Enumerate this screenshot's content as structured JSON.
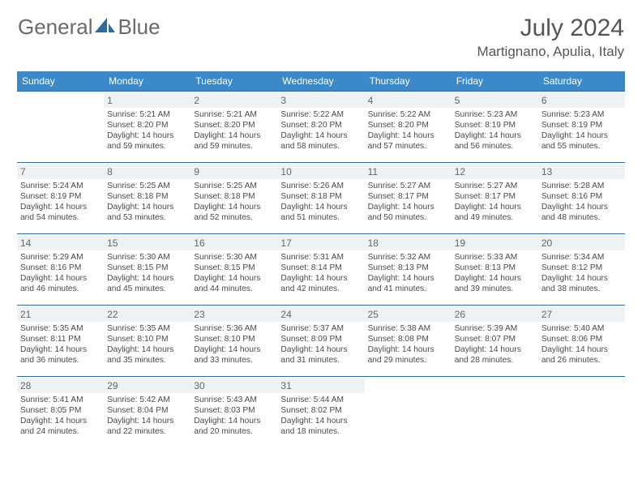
{
  "brand": {
    "part1": "General",
    "part2": "Blue"
  },
  "title": "July 2024",
  "location": "Martignano, Apulia, Italy",
  "colors": {
    "header_bg": "#3b89c9",
    "header_text": "#ffffff",
    "row_border": "#2f6aa0",
    "daynum_bg": "#eef2f5",
    "text": "#4a4a4a",
    "logo_accent": "#2f6aa0"
  },
  "weekdays": [
    "Sunday",
    "Monday",
    "Tuesday",
    "Wednesday",
    "Thursday",
    "Friday",
    "Saturday"
  ],
  "start_weekday_index": 1,
  "days": [
    {
      "n": 1,
      "sunrise": "5:21 AM",
      "sunset": "8:20 PM",
      "daylight": "14 hours and 59 minutes."
    },
    {
      "n": 2,
      "sunrise": "5:21 AM",
      "sunset": "8:20 PM",
      "daylight": "14 hours and 59 minutes."
    },
    {
      "n": 3,
      "sunrise": "5:22 AM",
      "sunset": "8:20 PM",
      "daylight": "14 hours and 58 minutes."
    },
    {
      "n": 4,
      "sunrise": "5:22 AM",
      "sunset": "8:20 PM",
      "daylight": "14 hours and 57 minutes."
    },
    {
      "n": 5,
      "sunrise": "5:23 AM",
      "sunset": "8:19 PM",
      "daylight": "14 hours and 56 minutes."
    },
    {
      "n": 6,
      "sunrise": "5:23 AM",
      "sunset": "8:19 PM",
      "daylight": "14 hours and 55 minutes."
    },
    {
      "n": 7,
      "sunrise": "5:24 AM",
      "sunset": "8:19 PM",
      "daylight": "14 hours and 54 minutes."
    },
    {
      "n": 8,
      "sunrise": "5:25 AM",
      "sunset": "8:18 PM",
      "daylight": "14 hours and 53 minutes."
    },
    {
      "n": 9,
      "sunrise": "5:25 AM",
      "sunset": "8:18 PM",
      "daylight": "14 hours and 52 minutes."
    },
    {
      "n": 10,
      "sunrise": "5:26 AM",
      "sunset": "8:18 PM",
      "daylight": "14 hours and 51 minutes."
    },
    {
      "n": 11,
      "sunrise": "5:27 AM",
      "sunset": "8:17 PM",
      "daylight": "14 hours and 50 minutes."
    },
    {
      "n": 12,
      "sunrise": "5:27 AM",
      "sunset": "8:17 PM",
      "daylight": "14 hours and 49 minutes."
    },
    {
      "n": 13,
      "sunrise": "5:28 AM",
      "sunset": "8:16 PM",
      "daylight": "14 hours and 48 minutes."
    },
    {
      "n": 14,
      "sunrise": "5:29 AM",
      "sunset": "8:16 PM",
      "daylight": "14 hours and 46 minutes."
    },
    {
      "n": 15,
      "sunrise": "5:30 AM",
      "sunset": "8:15 PM",
      "daylight": "14 hours and 45 minutes."
    },
    {
      "n": 16,
      "sunrise": "5:30 AM",
      "sunset": "8:15 PM",
      "daylight": "14 hours and 44 minutes."
    },
    {
      "n": 17,
      "sunrise": "5:31 AM",
      "sunset": "8:14 PM",
      "daylight": "14 hours and 42 minutes."
    },
    {
      "n": 18,
      "sunrise": "5:32 AM",
      "sunset": "8:13 PM",
      "daylight": "14 hours and 41 minutes."
    },
    {
      "n": 19,
      "sunrise": "5:33 AM",
      "sunset": "8:13 PM",
      "daylight": "14 hours and 39 minutes."
    },
    {
      "n": 20,
      "sunrise": "5:34 AM",
      "sunset": "8:12 PM",
      "daylight": "14 hours and 38 minutes."
    },
    {
      "n": 21,
      "sunrise": "5:35 AM",
      "sunset": "8:11 PM",
      "daylight": "14 hours and 36 minutes."
    },
    {
      "n": 22,
      "sunrise": "5:35 AM",
      "sunset": "8:10 PM",
      "daylight": "14 hours and 35 minutes."
    },
    {
      "n": 23,
      "sunrise": "5:36 AM",
      "sunset": "8:10 PM",
      "daylight": "14 hours and 33 minutes."
    },
    {
      "n": 24,
      "sunrise": "5:37 AM",
      "sunset": "8:09 PM",
      "daylight": "14 hours and 31 minutes."
    },
    {
      "n": 25,
      "sunrise": "5:38 AM",
      "sunset": "8:08 PM",
      "daylight": "14 hours and 29 minutes."
    },
    {
      "n": 26,
      "sunrise": "5:39 AM",
      "sunset": "8:07 PM",
      "daylight": "14 hours and 28 minutes."
    },
    {
      "n": 27,
      "sunrise": "5:40 AM",
      "sunset": "8:06 PM",
      "daylight": "14 hours and 26 minutes."
    },
    {
      "n": 28,
      "sunrise": "5:41 AM",
      "sunset": "8:05 PM",
      "daylight": "14 hours and 24 minutes."
    },
    {
      "n": 29,
      "sunrise": "5:42 AM",
      "sunset": "8:04 PM",
      "daylight": "14 hours and 22 minutes."
    },
    {
      "n": 30,
      "sunrise": "5:43 AM",
      "sunset": "8:03 PM",
      "daylight": "14 hours and 20 minutes."
    },
    {
      "n": 31,
      "sunrise": "5:44 AM",
      "sunset": "8:02 PM",
      "daylight": "14 hours and 18 minutes."
    }
  ],
  "labels": {
    "sunrise": "Sunrise:",
    "sunset": "Sunset:",
    "daylight": "Daylight:"
  }
}
